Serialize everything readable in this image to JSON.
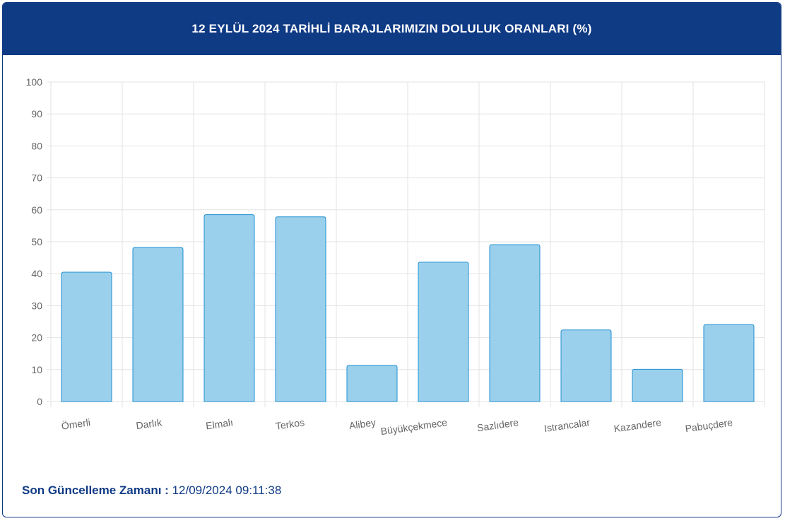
{
  "header": {
    "title": "12 EYLÜL 2024 TARİHLİ BARAJLARIMIZIN DOLULUK ORANLARI (%)"
  },
  "colors": {
    "header_bg": "#0f3a84",
    "bar_fill": "#9bd0ec",
    "bar_stroke": "#1f8fd1",
    "grid": "#e3e3e3",
    "tick_text": "#666666"
  },
  "chart_data": {
    "type": "bar",
    "title": "12 EYLÜL 2024 TARİHLİ BARAJLARIMIZIN DOLULUK ORANLARI (%)",
    "categories": [
      "Ömerli",
      "Darlık",
      "Elmalı",
      "Terkos",
      "Alibey",
      "Büyükçekmece",
      "Sazlıdere",
      "Istrancalar",
      "Kazandere",
      "Pabuçdere"
    ],
    "values": [
      40.5,
      48.2,
      58.5,
      57.8,
      11.3,
      43.6,
      49.1,
      22.4,
      10.1,
      24.1
    ],
    "yticks": [
      0,
      10,
      20,
      30,
      40,
      50,
      60,
      70,
      80,
      90,
      100
    ],
    "ylim": [
      0,
      100
    ],
    "grid": true
  },
  "footer": {
    "label": "Son Güncelleme Zamanı :",
    "value": "12/09/2024 09:11:38"
  }
}
